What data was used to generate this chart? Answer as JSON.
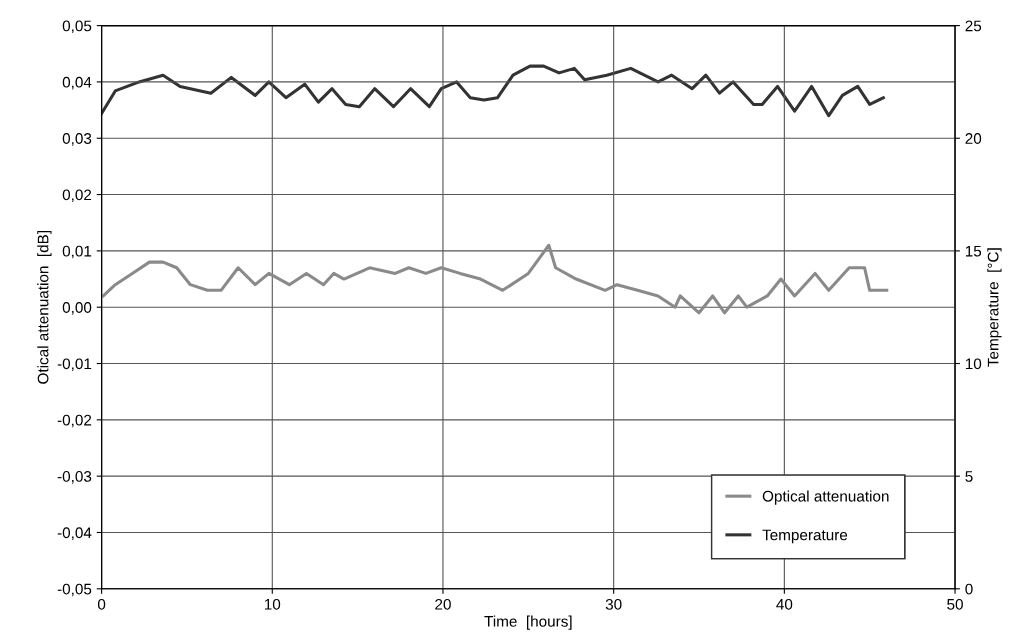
{
  "chart_data": {
    "type": "line",
    "xlabel": "Time  [hours]",
    "ylabel": "Otical attenuation  [dB]",
    "y2label": "Temperature  [°C]",
    "xlim": [
      0,
      50
    ],
    "xticks": [
      0,
      10,
      20,
      30,
      40,
      50
    ],
    "ylim": [
      -0.05,
      0.05
    ],
    "yticks": [
      {
        "value": -0.05,
        "label": "-0,05"
      },
      {
        "value": -0.04,
        "label": "-0,04"
      },
      {
        "value": -0.03,
        "label": "-0,03"
      },
      {
        "value": -0.02,
        "label": "-0,02"
      },
      {
        "value": -0.01,
        "label": "-0,01"
      },
      {
        "value": 0,
        "label": "0,00"
      },
      {
        "value": 0.01,
        "label": "0,01"
      },
      {
        "value": 0.02,
        "label": "0,02"
      },
      {
        "value": 0.03,
        "label": "0,03"
      },
      {
        "value": 0.04,
        "label": "0,04"
      },
      {
        "value": 0.05,
        "label": "0,05"
      }
    ],
    "y2lim": [
      0,
      25
    ],
    "y2ticks": [
      0,
      5,
      10,
      15,
      20,
      25
    ],
    "grid": true,
    "legend": "bottom right",
    "series": [
      {
        "name": "Optical attenuation",
        "color": "#8a8a8a",
        "x": [
          0.1,
          0.8,
          1.8,
          2.8,
          3.6,
          4.4,
          5.2,
          6.2,
          7.0,
          8.0,
          9.0,
          9.8,
          11.0,
          12.0,
          13.0,
          13.6,
          14.2,
          15.7,
          17.2,
          18.0,
          19.0,
          19.9,
          21.0,
          22.2,
          23.5,
          25.0,
          26.2,
          26.6,
          27.8,
          29.5,
          30.2,
          31.4,
          32.6,
          33.6,
          33.9,
          35.0,
          35.8,
          36.5,
          37.3,
          37.8,
          39.0,
          39.8,
          40.6,
          41.8,
          42.6,
          43.8,
          44.7,
          45.0,
          46.0
        ],
        "values": [
          0.002,
          0.004,
          0.006,
          0.008,
          0.008,
          0.007,
          0.004,
          0.003,
          0.003,
          0.007,
          0.004,
          0.006,
          0.004,
          0.006,
          0.004,
          0.006,
          0.005,
          0.007,
          0.006,
          0.007,
          0.006,
          0.007,
          0.006,
          0.005,
          0.003,
          0.006,
          0.011,
          0.007,
          0.005,
          0.003,
          0.004,
          0.003,
          0.002,
          0.0,
          0.002,
          -0.001,
          0.002,
          -0.001,
          0.002,
          0.0,
          0.002,
          0.005,
          0.002,
          0.006,
          0.003,
          0.007,
          0.007,
          0.003,
          0.003
        ]
      },
      {
        "name": "Temperature",
        "color": "#333333",
        "axis": "y2",
        "x": [
          0,
          0.8,
          2.2,
          3.6,
          4.6,
          6.4,
          7.6,
          9.0,
          9.8,
          10.8,
          11.9,
          12.7,
          13.5,
          14.3,
          15.1,
          16.0,
          17.1,
          18.1,
          19.2,
          19.9,
          20.8,
          21.6,
          22.4,
          23.2,
          24.1,
          25.1,
          25.9,
          26.8,
          27.7,
          28.3,
          29.6,
          31.0,
          32.6,
          33.4,
          34.6,
          35.4,
          36.2,
          37.0,
          38.2,
          38.7,
          39.6,
          40.6,
          41.6,
          42.6,
          43.4,
          44.3,
          45.0,
          45.8
        ],
        "values": [
          21.1,
          22.1,
          22.5,
          22.8,
          22.3,
          22.0,
          22.7,
          21.9,
          22.5,
          21.8,
          22.4,
          21.6,
          22.2,
          21.5,
          21.4,
          22.2,
          21.4,
          22.2,
          21.4,
          22.2,
          22.5,
          21.8,
          21.7,
          21.8,
          22.8,
          23.2,
          23.2,
          22.9,
          23.1,
          22.6,
          22.8,
          23.1,
          22.5,
          22.8,
          22.2,
          22.8,
          22.0,
          22.5,
          21.5,
          21.5,
          22.3,
          21.2,
          22.3,
          21.0,
          21.9,
          22.3,
          21.5,
          21.8
        ]
      }
    ]
  }
}
